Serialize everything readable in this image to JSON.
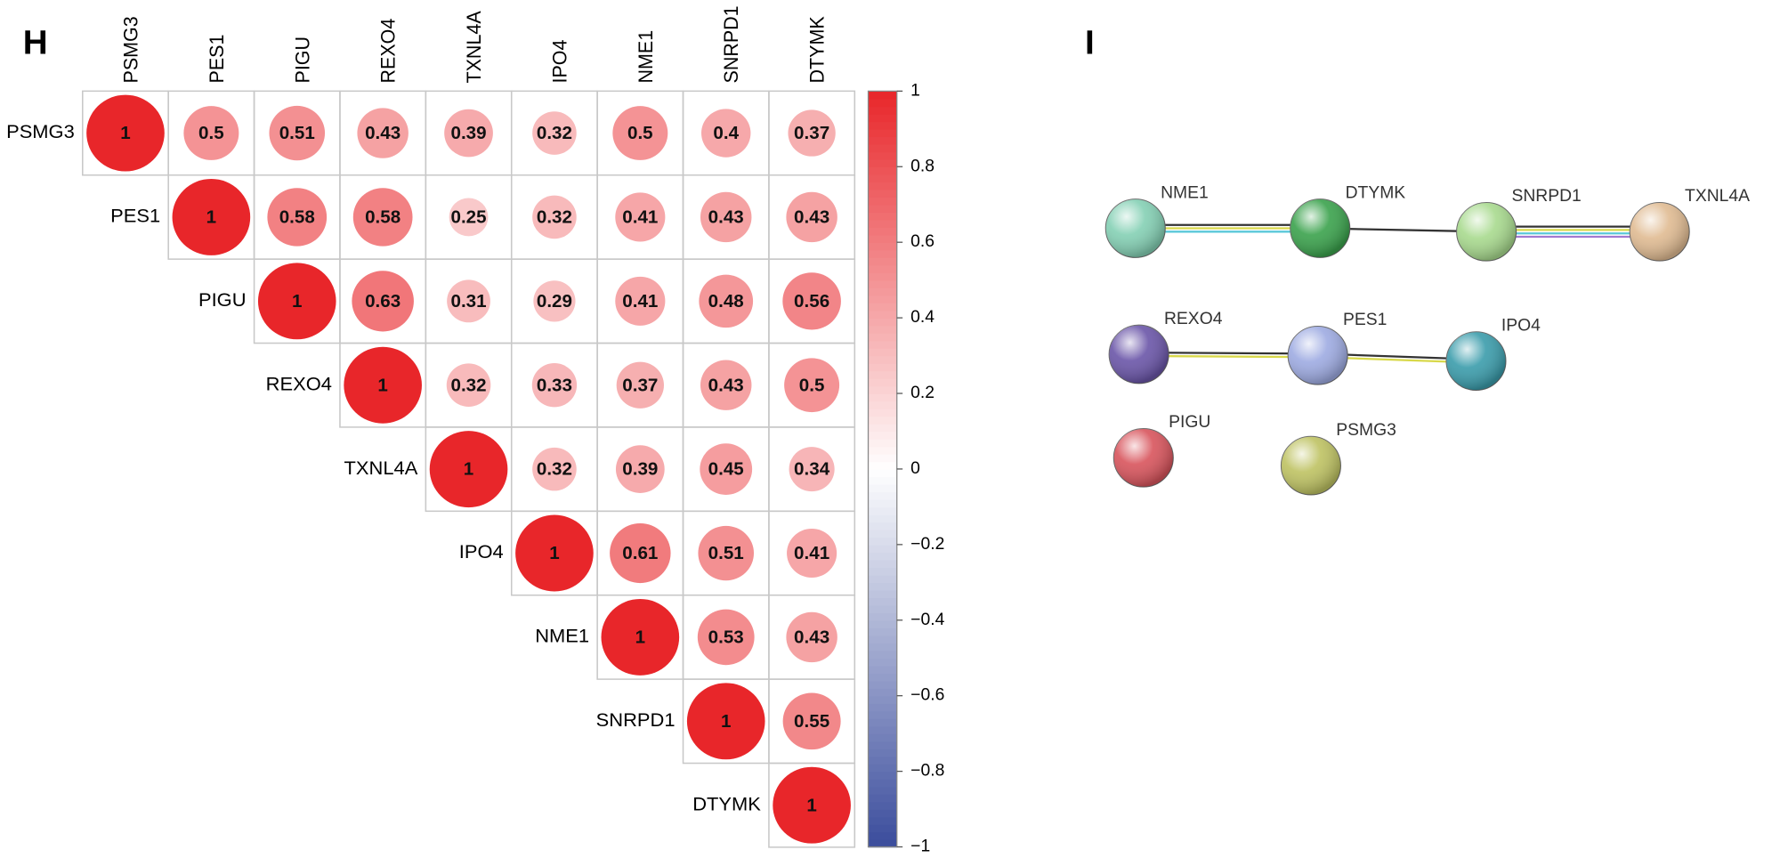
{
  "chart_data": {
    "type": "corrplot",
    "panel": "H",
    "labels": [
      "PSMG3",
      "PES1",
      "PIGU",
      "REXO4",
      "TXNL4A",
      "IPO4",
      "NME1",
      "SNRPD1",
      "DTYMK"
    ],
    "matrix": [
      [
        1,
        0.5,
        0.51,
        0.43,
        0.39,
        0.32,
        0.5,
        0.4,
        0.37
      ],
      [
        null,
        1,
        0.58,
        0.58,
        0.25,
        0.32,
        0.41,
        0.43,
        0.43
      ],
      [
        null,
        null,
        1,
        0.63,
        0.31,
        0.29,
        0.41,
        0.48,
        0.56
      ],
      [
        null,
        null,
        null,
        1,
        0.32,
        0.33,
        0.37,
        0.43,
        0.5
      ],
      [
        null,
        null,
        null,
        null,
        1,
        0.32,
        0.39,
        0.45,
        0.34
      ],
      [
        null,
        null,
        null,
        null,
        null,
        1,
        0.61,
        0.51,
        0.41
      ],
      [
        null,
        null,
        null,
        null,
        null,
        null,
        1,
        0.53,
        0.43
      ],
      [
        null,
        null,
        null,
        null,
        null,
        null,
        null,
        1,
        0.55
      ],
      [
        null,
        null,
        null,
        null,
        null,
        null,
        null,
        null,
        1
      ]
    ],
    "clim": [
      -1,
      1
    ],
    "cticks": [
      1,
      0.8,
      0.6,
      0.4,
      0.2,
      0,
      {
        "value": -0.2,
        "label": "−0.2"
      },
      {
        "value": -0.4,
        "label": "−0.4"
      },
      {
        "value": -0.6,
        "label": "−0.6"
      },
      {
        "value": -0.8,
        "label": "−0.8"
      },
      {
        "value": -1,
        "label": "−1"
      }
    ],
    "colors": {
      "positive": "#e8262a",
      "zero": "#ffffff",
      "negative": "#3a4c9c"
    }
  },
  "network": {
    "panel": "I",
    "nodes": [
      {
        "label": "NME1"
      },
      {
        "label": "DTYMK"
      },
      {
        "label": "SNRPD1"
      },
      {
        "label": "TXNL4A"
      },
      {
        "label": "REXO4"
      },
      {
        "label": "PES1"
      },
      {
        "label": "IPO4"
      },
      {
        "label": "PIGU"
      },
      {
        "label": "PSMG3"
      }
    ]
  }
}
